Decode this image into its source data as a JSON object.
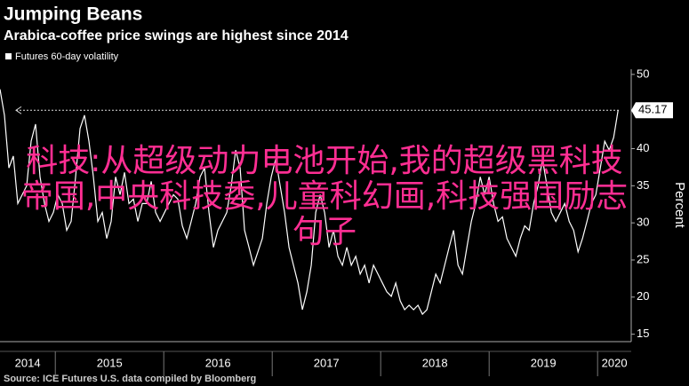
{
  "chart_data": {
    "type": "line",
    "title": "Jumping Beans",
    "subtitle": "Arabica-coffee price swings are highest since 2014",
    "y_label": "Percent",
    "source": "Source: ICE Futures U.S. data compiled by Bloomberg",
    "overlay_text": "科技:从超级动力电池开始,我的超级黑科技帝国,中央科技委,儿童科幻画,科技强国励志句子",
    "last_value": 45.17,
    "x": [
      2014.49,
      2014.531,
      2014.572,
      2014.613,
      2014.654,
      2014.695,
      2014.736,
      2014.777,
      2014.818,
      2014.859,
      2014.9,
      2014.941,
      2014.982,
      2015.023,
      2015.064,
      2015.105,
      2015.146,
      2015.187,
      2015.228,
      2015.269,
      2015.31,
      2015.351,
      2015.392,
      2015.433,
      2015.474,
      2015.515,
      2015.556,
      2015.597,
      2015.638,
      2015.679,
      2015.72,
      2015.761,
      2015.802,
      2015.843,
      2015.884,
      2015.925,
      2015.966,
      2016.007,
      2016.048,
      2016.089,
      2016.13,
      2016.171,
      2016.212,
      2016.253,
      2016.294,
      2016.335,
      2016.376,
      2016.417,
      2016.458,
      2016.499,
      2016.54,
      2016.581,
      2016.622,
      2016.663,
      2016.704,
      2016.745,
      2016.786,
      2016.827,
      2016.868,
      2016.909,
      2016.95,
      2016.991,
      2017.032,
      2017.073,
      2017.114,
      2017.155,
      2017.196,
      2017.237,
      2017.278,
      2017.319,
      2017.36,
      2017.401,
      2017.442,
      2017.483,
      2017.524,
      2017.565,
      2017.606,
      2017.647,
      2017.688,
      2017.729,
      2017.77,
      2017.811,
      2017.852,
      2017.893,
      2017.934,
      2017.975,
      2018.016,
      2018.057,
      2018.098,
      2018.139,
      2018.18,
      2018.221,
      2018.262,
      2018.303,
      2018.344,
      2018.385,
      2018.426,
      2018.467,
      2018.508,
      2018.549,
      2018.59,
      2018.631,
      2018.672,
      2018.713,
      2018.754,
      2018.795,
      2018.836,
      2018.877,
      2018.918,
      2018.959,
      2019.0,
      2019.041,
      2019.082,
      2019.123,
      2019.164,
      2019.205,
      2019.246,
      2019.287,
      2019.328,
      2019.369,
      2019.41,
      2019.451,
      2019.492,
      2019.533,
      2019.574,
      2019.615,
      2019.656,
      2019.697,
      2019.738,
      2019.779,
      2019.82,
      2019.861,
      2019.902,
      2019.943,
      2019.984,
      2020.025,
      2020.066,
      2020.107,
      2020.148,
      2020.189
    ],
    "series": [
      {
        "name": "Futures 60-day volatility",
        "color": "#ffffff",
        "values": [
          48,
          44.5,
          37.4,
          39,
          32.6,
          33.8,
          35,
          41,
          43.3,
          36.2,
          32.6,
          30.2,
          31.4,
          33.8,
          32.6,
          29,
          30.2,
          36.2,
          42.7,
          44.5,
          41,
          36.2,
          30.2,
          31.4,
          27.9,
          30.2,
          36.2,
          33.8,
          36.8,
          32.6,
          33.2,
          30.2,
          32.6,
          32.6,
          35.6,
          31.4,
          30.2,
          31.4,
          32.6,
          33.8,
          33.2,
          29.6,
          27.9,
          30.2,
          32.6,
          36.2,
          37.4,
          31.4,
          26.7,
          29,
          30.2,
          31.4,
          35,
          39.8,
          37.4,
          29,
          26.7,
          24.3,
          26.1,
          27.9,
          32.6,
          36.2,
          38.6,
          35,
          31.4,
          26.7,
          24.3,
          21.9,
          18.3,
          20.7,
          24.3,
          31.4,
          33.8,
          31.4,
          26.7,
          29,
          25.5,
          24.3,
          26.7,
          24.3,
          25.5,
          23.1,
          24.3,
          21.9,
          24.3,
          23.1,
          21.9,
          20.7,
          20.1,
          21.9,
          19.5,
          18.3,
          18.9,
          18.3,
          18.9,
          17.7,
          18.3,
          20.7,
          23.1,
          21.9,
          24.3,
          26.7,
          29,
          24.3,
          23.1,
          26.7,
          30.2,
          32.6,
          36.2,
          33.8,
          36.2,
          32.6,
          30.2,
          30.8,
          27.9,
          26.7,
          25.5,
          27.9,
          29.6,
          29,
          32.6,
          35,
          38.6,
          35,
          31.4,
          30.2,
          31.4,
          32.6,
          30.2,
          29,
          26.1,
          27.9,
          30.2,
          32.6,
          33.8,
          37.4,
          41,
          39.8,
          41.5,
          45.17
        ]
      }
    ],
    "xlim": [
      2014.49,
      2020.31
    ],
    "xticks": [
      {
        "value": 2014.5,
        "label": "2014"
      },
      {
        "value": 2015.5,
        "label": "2015"
      },
      {
        "value": 2016.5,
        "label": "2016"
      },
      {
        "value": 2017.5,
        "label": "2017"
      },
      {
        "value": 2018.5,
        "label": "2018"
      },
      {
        "value": 2019.5,
        "label": "2019"
      },
      {
        "value": 2020.5,
        "label": "2020"
      }
    ],
    "ylim": [
      14,
      50.7
    ],
    "yticks": [
      15,
      20,
      25,
      30,
      35,
      40,
      45,
      50
    ],
    "grid": false
  }
}
